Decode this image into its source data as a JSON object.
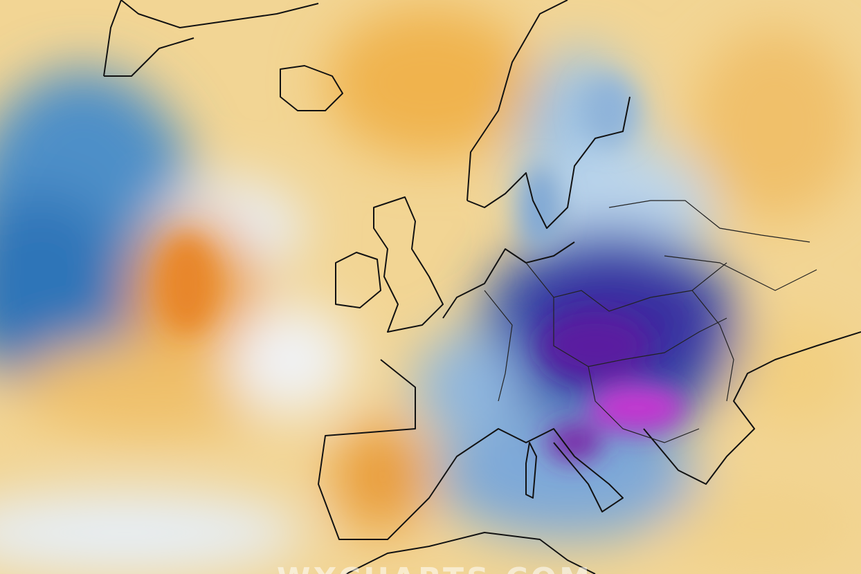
{
  "watermark": "WXCHARTS.COM"
}
